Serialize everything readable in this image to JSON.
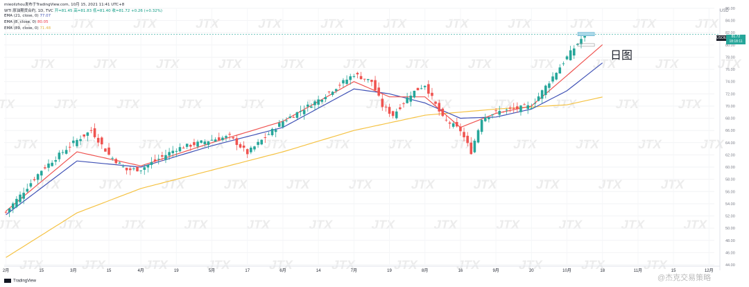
{
  "header": {
    "author": "mieoilzhou发布于TradingView.com, 10月 15, 2021 11:41 UTC+8",
    "symbol": "WTI 原油期货合约, 1D, TVC",
    "ohlc": "开=81.45  高=81.83  低=81.40  收=81.72  +0.26 (+0.32%)",
    "ema1_label": "EMA (21, close, 0)",
    "ema1_value": "77.07",
    "ema2_label": "EMA (8, close, 0)",
    "ema2_value": "80.05",
    "ema3_label": "EMA (89, close, 0)",
    "ema3_value": "71.48"
  },
  "annotation": "日图",
  "currency": "USD",
  "price_tag": {
    "symbol": "USOIL",
    "price": "81.72",
    "countdown": "18:18:11"
  },
  "footer": {
    "brand": "TradingView"
  },
  "corner_brand": "@杰克交易策略",
  "watermark": "JTX",
  "colors": {
    "up": "#26a69a",
    "down": "#ef5350",
    "ema_fast": "#ef5350",
    "ema_mid": "#3f51b5",
    "ema_slow": "#f5c242",
    "axis": "#787b86"
  },
  "chart_data": {
    "type": "candlestick",
    "title": "WTI 原油期货合约, 1D, TVC",
    "y_axis_side": "right",
    "ylim": [
      44,
      86
    ],
    "y_ticks": [
      "44.00",
      "46.00",
      "48.00",
      "50.00",
      "52.00",
      "54.00",
      "56.00",
      "58.00",
      "60.00",
      "62.00",
      "64.00",
      "66.00",
      "68.00",
      "70.00",
      "72.00",
      "74.00",
      "76.00",
      "78.00",
      "80.00",
      "82.00",
      "84.00",
      "86.00"
    ],
    "x_ticks": [
      "2月",
      "15",
      "3月",
      "15",
      "4月",
      "19",
      "5月",
      "17",
      "6月",
      "14",
      "7月",
      "19",
      "8月",
      "16",
      "9月",
      "20",
      "10月",
      "18",
      "11月",
      "15",
      "12月"
    ],
    "x_tick_index": [
      0,
      10,
      19,
      29,
      38,
      48,
      58,
      68,
      78,
      88,
      98,
      108,
      118,
      128,
      138,
      148,
      158,
      168,
      178,
      188,
      198
    ],
    "close_path": [
      [
        0,
        52.6
      ],
      [
        10,
        59.5
      ],
      [
        19,
        64.0
      ],
      [
        24,
        66.0
      ],
      [
        29,
        62.0
      ],
      [
        34,
        59.5
      ],
      [
        38,
        59.7
      ],
      [
        48,
        63.0
      ],
      [
        58,
        64.5
      ],
      [
        63,
        65.0
      ],
      [
        68,
        62.3
      ],
      [
        78,
        67.5
      ],
      [
        88,
        71.0
      ],
      [
        94,
        73.5
      ],
      [
        98,
        75.2
      ],
      [
        103,
        74.0
      ],
      [
        106,
        70.0
      ],
      [
        109,
        68.5
      ],
      [
        114,
        72.0
      ],
      [
        118,
        73.5
      ],
      [
        123,
        68.0
      ],
      [
        128,
        66.0
      ],
      [
        131,
        62.5
      ],
      [
        134,
        68.0
      ],
      [
        138,
        69.0
      ],
      [
        143,
        69.5
      ],
      [
        148,
        70.0
      ],
      [
        153,
        74.0
      ],
      [
        158,
        78.0
      ],
      [
        163,
        81.72
      ]
    ],
    "ema_21_path": [
      [
        0,
        52.2
      ],
      [
        20,
        61.0
      ],
      [
        38,
        60.0
      ],
      [
        58,
        63.5
      ],
      [
        78,
        66.5
      ],
      [
        98,
        72.8
      ],
      [
        108,
        72.0
      ],
      [
        118,
        70.5
      ],
      [
        128,
        68.0
      ],
      [
        138,
        68.2
      ],
      [
        148,
        69.5
      ],
      [
        158,
        72.5
      ],
      [
        168,
        77.07
      ]
    ],
    "ema_8_path": [
      [
        0,
        52.8
      ],
      [
        20,
        62.5
      ],
      [
        38,
        60.2
      ],
      [
        58,
        64.0
      ],
      [
        78,
        67.5
      ],
      [
        98,
        74.0
      ],
      [
        108,
        71.5
      ],
      [
        118,
        71.5
      ],
      [
        128,
        66.5
      ],
      [
        138,
        68.8
      ],
      [
        148,
        70.0
      ],
      [
        158,
        75.0
      ],
      [
        168,
        80.05
      ]
    ],
    "ema_89_path": [
      [
        0,
        45.2
      ],
      [
        20,
        52.5
      ],
      [
        38,
        56.5
      ],
      [
        58,
        59.5
      ],
      [
        78,
        62.5
      ],
      [
        98,
        66.0
      ],
      [
        118,
        68.5
      ],
      [
        138,
        69.5
      ],
      [
        158,
        70.2
      ],
      [
        168,
        71.48
      ]
    ],
    "last_price": 81.72
  }
}
